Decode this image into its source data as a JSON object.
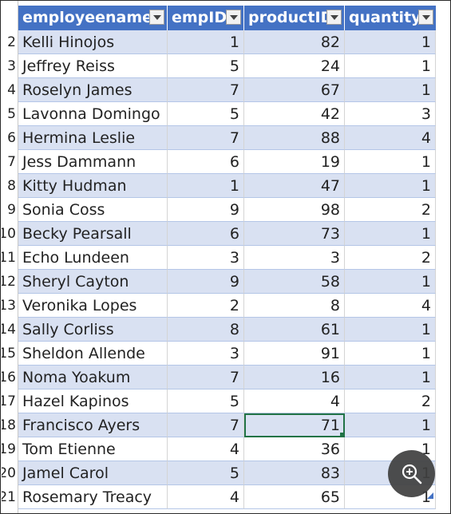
{
  "table": {
    "columns": [
      "employeename",
      "empID",
      "productID",
      "quantity"
    ],
    "rows": [
      [
        "Kelli Hinojos",
        "1",
        "82",
        "1"
      ],
      [
        "Jeffrey Reiss",
        "5",
        "24",
        "1"
      ],
      [
        "Roselyn James",
        "7",
        "67",
        "1"
      ],
      [
        "Lavonna Domingo",
        "5",
        "42",
        "3"
      ],
      [
        "Hermina Leslie",
        "7",
        "88",
        "4"
      ],
      [
        "Jess Dammann",
        "6",
        "19",
        "1"
      ],
      [
        "Kitty Hudman",
        "1",
        "47",
        "1"
      ],
      [
        "Sonia Coss",
        "9",
        "98",
        "2"
      ],
      [
        "Becky Pearsall",
        "6",
        "73",
        "1"
      ],
      [
        "Echo Lundeen",
        "3",
        "3",
        "2"
      ],
      [
        "Sheryl Cayton",
        "9",
        "58",
        "1"
      ],
      [
        "Veronika Lopes",
        "2",
        "8",
        "4"
      ],
      [
        "Sally Corliss",
        "8",
        "61",
        "1"
      ],
      [
        "Sheldon Allende",
        "3",
        "91",
        "1"
      ],
      [
        "Noma Yoakum",
        "7",
        "16",
        "1"
      ],
      [
        "Hazel Kapinos",
        "5",
        "4",
        "2"
      ],
      [
        "Francisco Ayers",
        "7",
        "71",
        "1"
      ],
      [
        "Tom Etienne",
        "4",
        "36",
        "1"
      ],
      [
        "Jamel Carol",
        "5",
        "83",
        "1"
      ],
      [
        "Rosemary Treacy",
        "4",
        "65",
        "1"
      ]
    ],
    "selected_cell": {
      "row": 16,
      "col": 2
    }
  },
  "row_headers": [
    "2",
    "3",
    "4",
    "5",
    "6",
    "7",
    "8",
    "9",
    "10",
    "11",
    "12",
    "13",
    "14",
    "15",
    "16",
    "17",
    "18",
    "19",
    "20",
    "21"
  ],
  "icons": {
    "filter": "filter-dropdown-icon",
    "zoom": "zoom-in-icon",
    "resize": "table-resize-handle-icon"
  },
  "colors": {
    "header_bg": "#4472c4",
    "band": "#d9e1f2",
    "selection": "#217346"
  }
}
